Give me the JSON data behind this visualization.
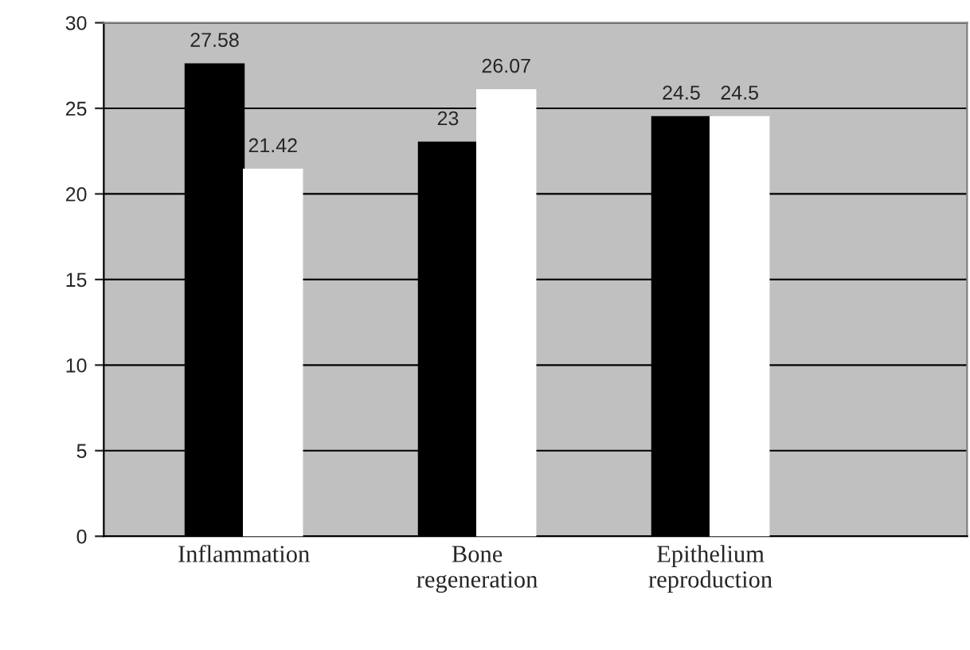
{
  "chart_data": {
    "type": "bar",
    "categories": [
      "Inflammation",
      "Bone\nregeneration",
      "Epithelium\nreproduction"
    ],
    "series": [
      {
        "color": "#000000",
        "values": [
          27.58,
          23,
          24.5
        ]
      },
      {
        "color": "#ffffff",
        "values": [
          21.42,
          26.07,
          24.5
        ]
      }
    ],
    "ylim": [
      0,
      30
    ],
    "yticks": [
      0,
      5,
      10,
      15,
      20,
      25,
      30
    ],
    "grid": "y",
    "data_labels": true,
    "legend": false
  }
}
